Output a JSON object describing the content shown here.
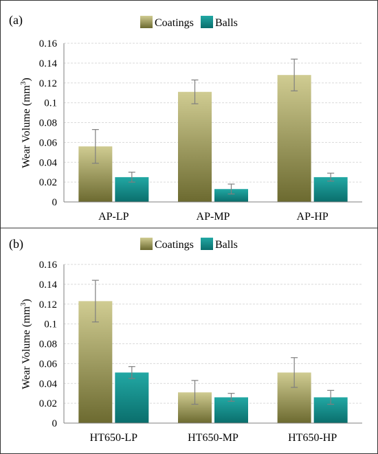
{
  "colors": {
    "coatings_top": "#d0cc92",
    "coatings_bottom": "#6c6a30",
    "balls_top": "#22a8a4",
    "balls_bottom": "#0a6e6c",
    "grid": "#d9d9d9",
    "axis": "#7f7f7f",
    "error_bar": "#7f7f7f"
  },
  "chart_data": [
    {
      "type": "bar",
      "panel_label": "(a)",
      "ylabel": "Wear Volume (mm",
      "ylabel_sup": "3",
      "ylabel_close": ")",
      "ylim": [
        0,
        0.16
      ],
      "yticks": [
        "0",
        "0.02",
        "0.04",
        "0.06",
        "0.08",
        "0.1",
        "0.12",
        "0.14",
        "0.16"
      ],
      "categories": [
        "AP-LP",
        "AP-MP",
        "AP-HP"
      ],
      "legend_position": "top",
      "grid": true,
      "series": [
        {
          "name": "Coatings",
          "values": [
            0.056,
            0.111,
            0.128
          ],
          "errors": [
            0.017,
            0.012,
            0.016
          ]
        },
        {
          "name": "Balls",
          "values": [
            0.025,
            0.013,
            0.025
          ],
          "errors": [
            0.005,
            0.005,
            0.004
          ]
        }
      ]
    },
    {
      "type": "bar",
      "panel_label": "(b)",
      "ylabel": "Wear Volume (mm",
      "ylabel_sup": "3",
      "ylabel_close": ")",
      "ylim": [
        0,
        0.16
      ],
      "yticks": [
        "0",
        "0.02",
        "0.04",
        "0.06",
        "0.08",
        "0.1",
        "0.12",
        "0.14",
        "0.16"
      ],
      "categories": [
        "HT650-LP",
        "HT650-MP",
        "HT650-HP"
      ],
      "legend_position": "top",
      "grid": true,
      "series": [
        {
          "name": "Coatings",
          "values": [
            0.123,
            0.031,
            0.051
          ],
          "errors": [
            0.021,
            0.012,
            0.015
          ]
        },
        {
          "name": "Balls",
          "values": [
            0.051,
            0.026,
            0.026
          ],
          "errors": [
            0.006,
            0.004,
            0.007
          ]
        }
      ]
    }
  ]
}
